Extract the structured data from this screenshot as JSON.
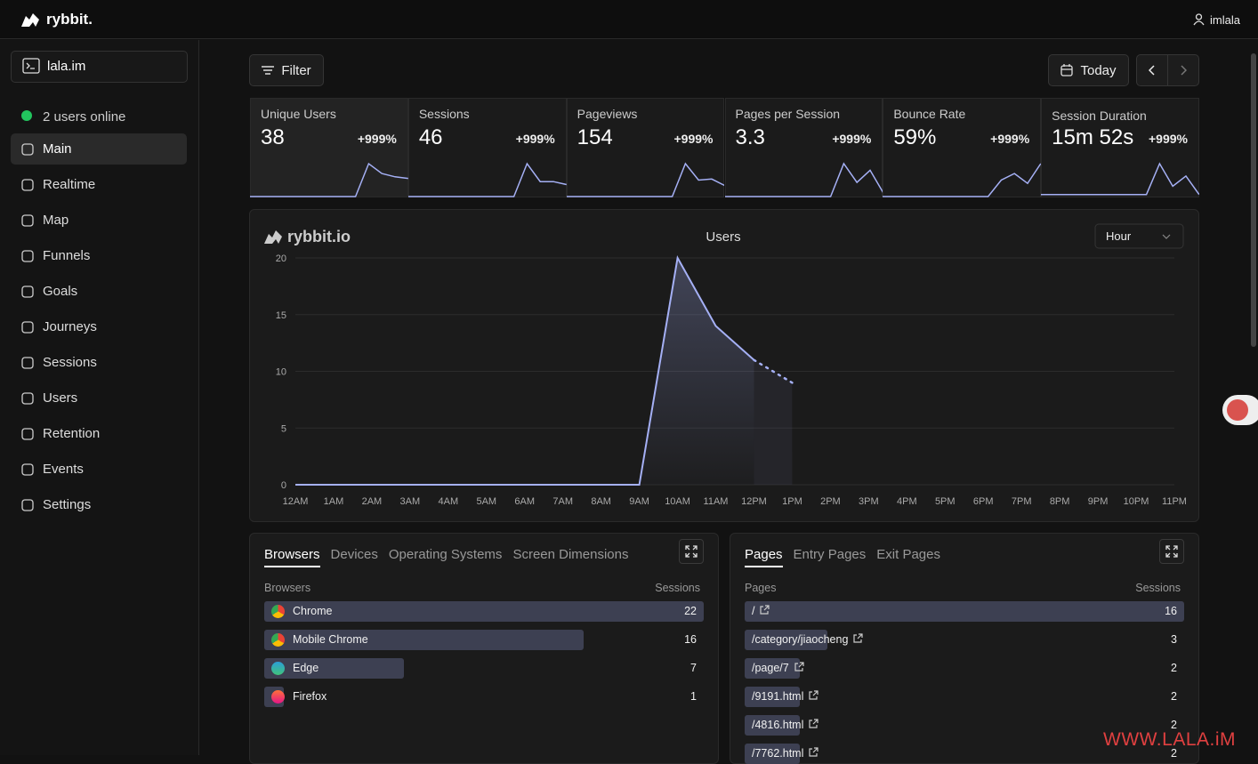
{
  "header": {
    "brand": "rybbit.",
    "user": "imlala"
  },
  "sidebar": {
    "site": "lala.im",
    "online": "2 users online",
    "nav": [
      "Main",
      "Realtime",
      "Map",
      "Funnels",
      "Goals",
      "Journeys",
      "Sessions",
      "Users",
      "Retention",
      "Events",
      "Settings"
    ]
  },
  "toolbar": {
    "filter": "Filter",
    "date": "Today"
  },
  "metrics": [
    {
      "label": "Unique Users",
      "value": 38,
      "change": "+999%",
      "trend": [
        0,
        0,
        0,
        0,
        0,
        0,
        0,
        0,
        0,
        20,
        14,
        12,
        11
      ]
    },
    {
      "label": "Sessions",
      "value": 46,
      "change": "+999%",
      "trend": [
        0,
        0,
        0,
        0,
        0,
        0,
        0,
        0,
        0,
        22,
        10,
        10,
        8
      ]
    },
    {
      "label": "Pageviews",
      "value": 154,
      "change": "+999%",
      "trend": [
        0,
        0,
        0,
        0,
        0,
        0,
        0,
        0,
        0,
        60,
        30,
        32,
        20
      ]
    },
    {
      "label": "Pages per Session",
      "value": 3.3,
      "change": "+999%",
      "trend": [
        0,
        0,
        0,
        0,
        0,
        0,
        0,
        0,
        0,
        3.5,
        1.5,
        2.8,
        0.4
      ]
    },
    {
      "label": "Bounce Rate",
      "value": "59%",
      "change": "+999%",
      "trend": [
        0,
        0,
        0,
        0,
        0,
        0,
        0,
        0,
        0,
        50,
        70,
        40,
        100
      ]
    },
    {
      "label": "Session Duration",
      "value": "15m 52s",
      "change": "+999%",
      "trend": [
        1,
        1,
        1,
        1,
        1,
        1,
        1,
        1,
        1,
        16,
        5,
        10,
        1
      ]
    }
  ],
  "chart_data": {
    "type": "line",
    "logo": "rybbit.io",
    "title": "Users",
    "interval": "Hour",
    "color": "#a5b0f5",
    "categories": [
      "12AM",
      "1AM",
      "2AM",
      "3AM",
      "4AM",
      "5AM",
      "6AM",
      "7AM",
      "8AM",
      "9AM",
      "10AM",
      "11AM",
      "12PM",
      "1PM",
      "2PM",
      "3PM",
      "4PM",
      "5PM",
      "6PM",
      "7PM",
      "8PM",
      "9PM",
      "10PM",
      "11PM"
    ],
    "values": [
      0,
      0,
      0,
      0,
      0,
      0,
      0,
      0,
      0,
      0,
      20,
      14,
      11,
      9,
      null,
      null,
      null,
      null,
      null,
      null,
      null,
      null,
      null,
      null
    ],
    "ylim": [
      0,
      20
    ],
    "yticks": [
      0,
      5,
      10,
      15,
      20
    ],
    "grid": true
  },
  "browsers": {
    "tabs": [
      "Browsers",
      "Devices",
      "Operating Systems",
      "Screen Dimensions"
    ],
    "column_label": "Browsers",
    "column_value": "Sessions",
    "rows": [
      {
        "name": "Chrome",
        "sessions": 22
      },
      {
        "name": "Mobile Chrome",
        "sessions": 16
      },
      {
        "name": "Edge",
        "sessions": 7
      },
      {
        "name": "Firefox",
        "sessions": 1
      }
    ]
  },
  "pages": {
    "tabs": [
      "Pages",
      "Entry Pages",
      "Exit Pages"
    ],
    "column_label": "Pages",
    "column_value": "Sessions",
    "rows": [
      {
        "name": "/",
        "sessions": 16
      },
      {
        "name": "/category/jiaocheng",
        "sessions": 3
      },
      {
        "name": "/page/7",
        "sessions": 2
      },
      {
        "name": "/9191.html",
        "sessions": 2
      },
      {
        "name": "/4816.html",
        "sessions": 2
      },
      {
        "name": "/7762.html",
        "sessions": 2
      }
    ]
  },
  "watermark": "WWW.LALA.iM"
}
